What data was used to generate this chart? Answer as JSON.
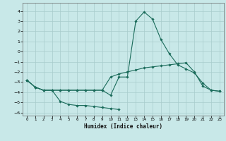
{
  "xlabel": "Humidex (Indice chaleur)",
  "xlim": [
    -0.5,
    23.5
  ],
  "ylim": [
    -6.3,
    4.8
  ],
  "yticks": [
    -6,
    -5,
    -4,
    -3,
    -2,
    -1,
    0,
    1,
    2,
    3,
    4
  ],
  "xticks": [
    0,
    1,
    2,
    3,
    4,
    5,
    6,
    7,
    8,
    9,
    10,
    11,
    12,
    13,
    14,
    15,
    16,
    17,
    18,
    19,
    20,
    21,
    22,
    23
  ],
  "bg_color": "#c8e8e8",
  "grid_color": "#a8cccc",
  "line_color": "#1a6b5a",
  "line1_x": [
    0,
    1,
    2,
    3,
    4,
    5,
    6,
    7,
    8,
    9,
    10,
    11,
    12,
    13,
    14,
    15,
    16,
    17,
    18,
    19,
    20,
    21,
    22,
    23
  ],
  "line1_y": [
    -2.8,
    -3.5,
    -3.8,
    -3.8,
    -3.8,
    -3.8,
    -3.8,
    -3.8,
    -3.8,
    -3.8,
    -4.3,
    -2.5,
    -2.5,
    3.0,
    3.9,
    3.2,
    1.2,
    -0.2,
    -1.3,
    -1.7,
    -2.1,
    -3.1,
    -3.8,
    -3.9
  ],
  "line2_x": [
    0,
    1,
    2,
    3,
    4,
    5,
    6,
    7,
    8,
    9,
    10,
    11
  ],
  "line2_y": [
    -2.8,
    -3.5,
    -3.8,
    -3.8,
    -4.9,
    -5.2,
    -5.3,
    -5.3,
    -5.4,
    -5.5,
    -5.6,
    -5.7
  ],
  "line3_x": [
    0,
    1,
    2,
    3,
    4,
    5,
    6,
    7,
    8,
    9,
    10,
    11,
    12,
    13,
    14,
    15,
    16,
    17,
    18,
    19,
    20,
    21,
    22,
    23
  ],
  "line3_y": [
    -2.8,
    -3.5,
    -3.8,
    -3.8,
    -3.8,
    -3.8,
    -3.8,
    -3.8,
    -3.8,
    -3.8,
    -2.5,
    -2.2,
    -2.0,
    -1.8,
    -1.6,
    -1.5,
    -1.4,
    -1.3,
    -1.2,
    -1.1,
    -2.0,
    -3.4,
    -3.8,
    -3.9
  ]
}
